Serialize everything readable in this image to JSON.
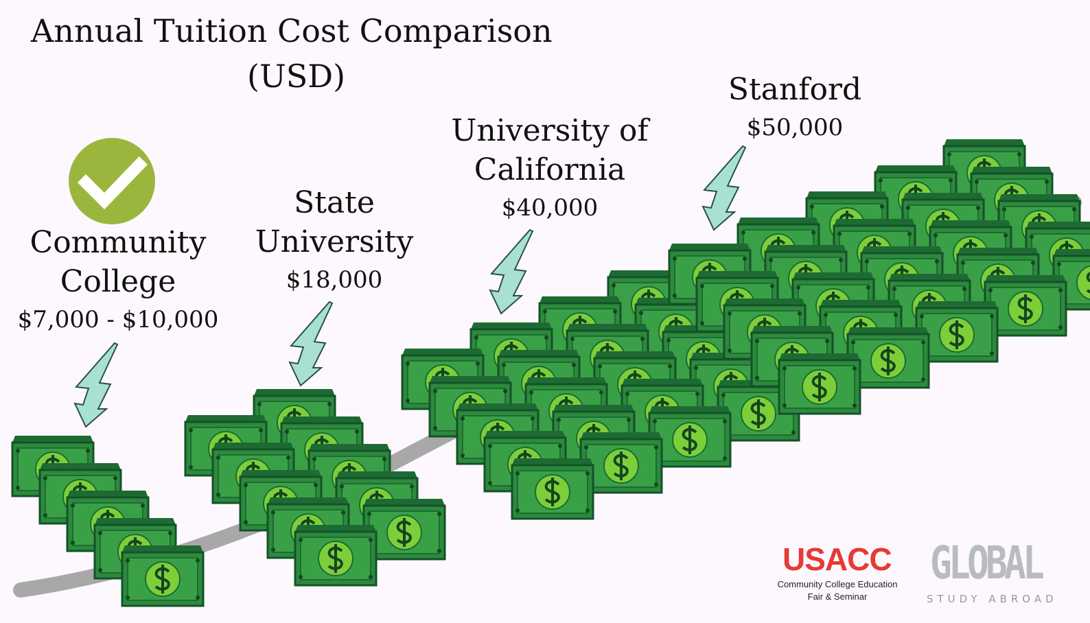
{
  "title": "Annual Tuition Cost Comparison",
  "subtitle": "(USD)",
  "schools": [
    {
      "name": [
        "Community",
        "College"
      ],
      "cost": "$7,000 - $10,000"
    },
    {
      "name": [
        "State",
        "University"
      ],
      "cost": "$18,000"
    },
    {
      "name": [
        "University of",
        "California"
      ],
      "cost": "$40,000"
    },
    {
      "name": [
        "Stanford"
      ],
      "cost": "$50,000"
    }
  ],
  "logos": {
    "usacc": {
      "name": "USACC",
      "line1": "Community College Education",
      "line2": "Fair & Seminar"
    },
    "global": {
      "name": "GLOBAL",
      "tagline": "STUDY ABROAD"
    }
  }
}
